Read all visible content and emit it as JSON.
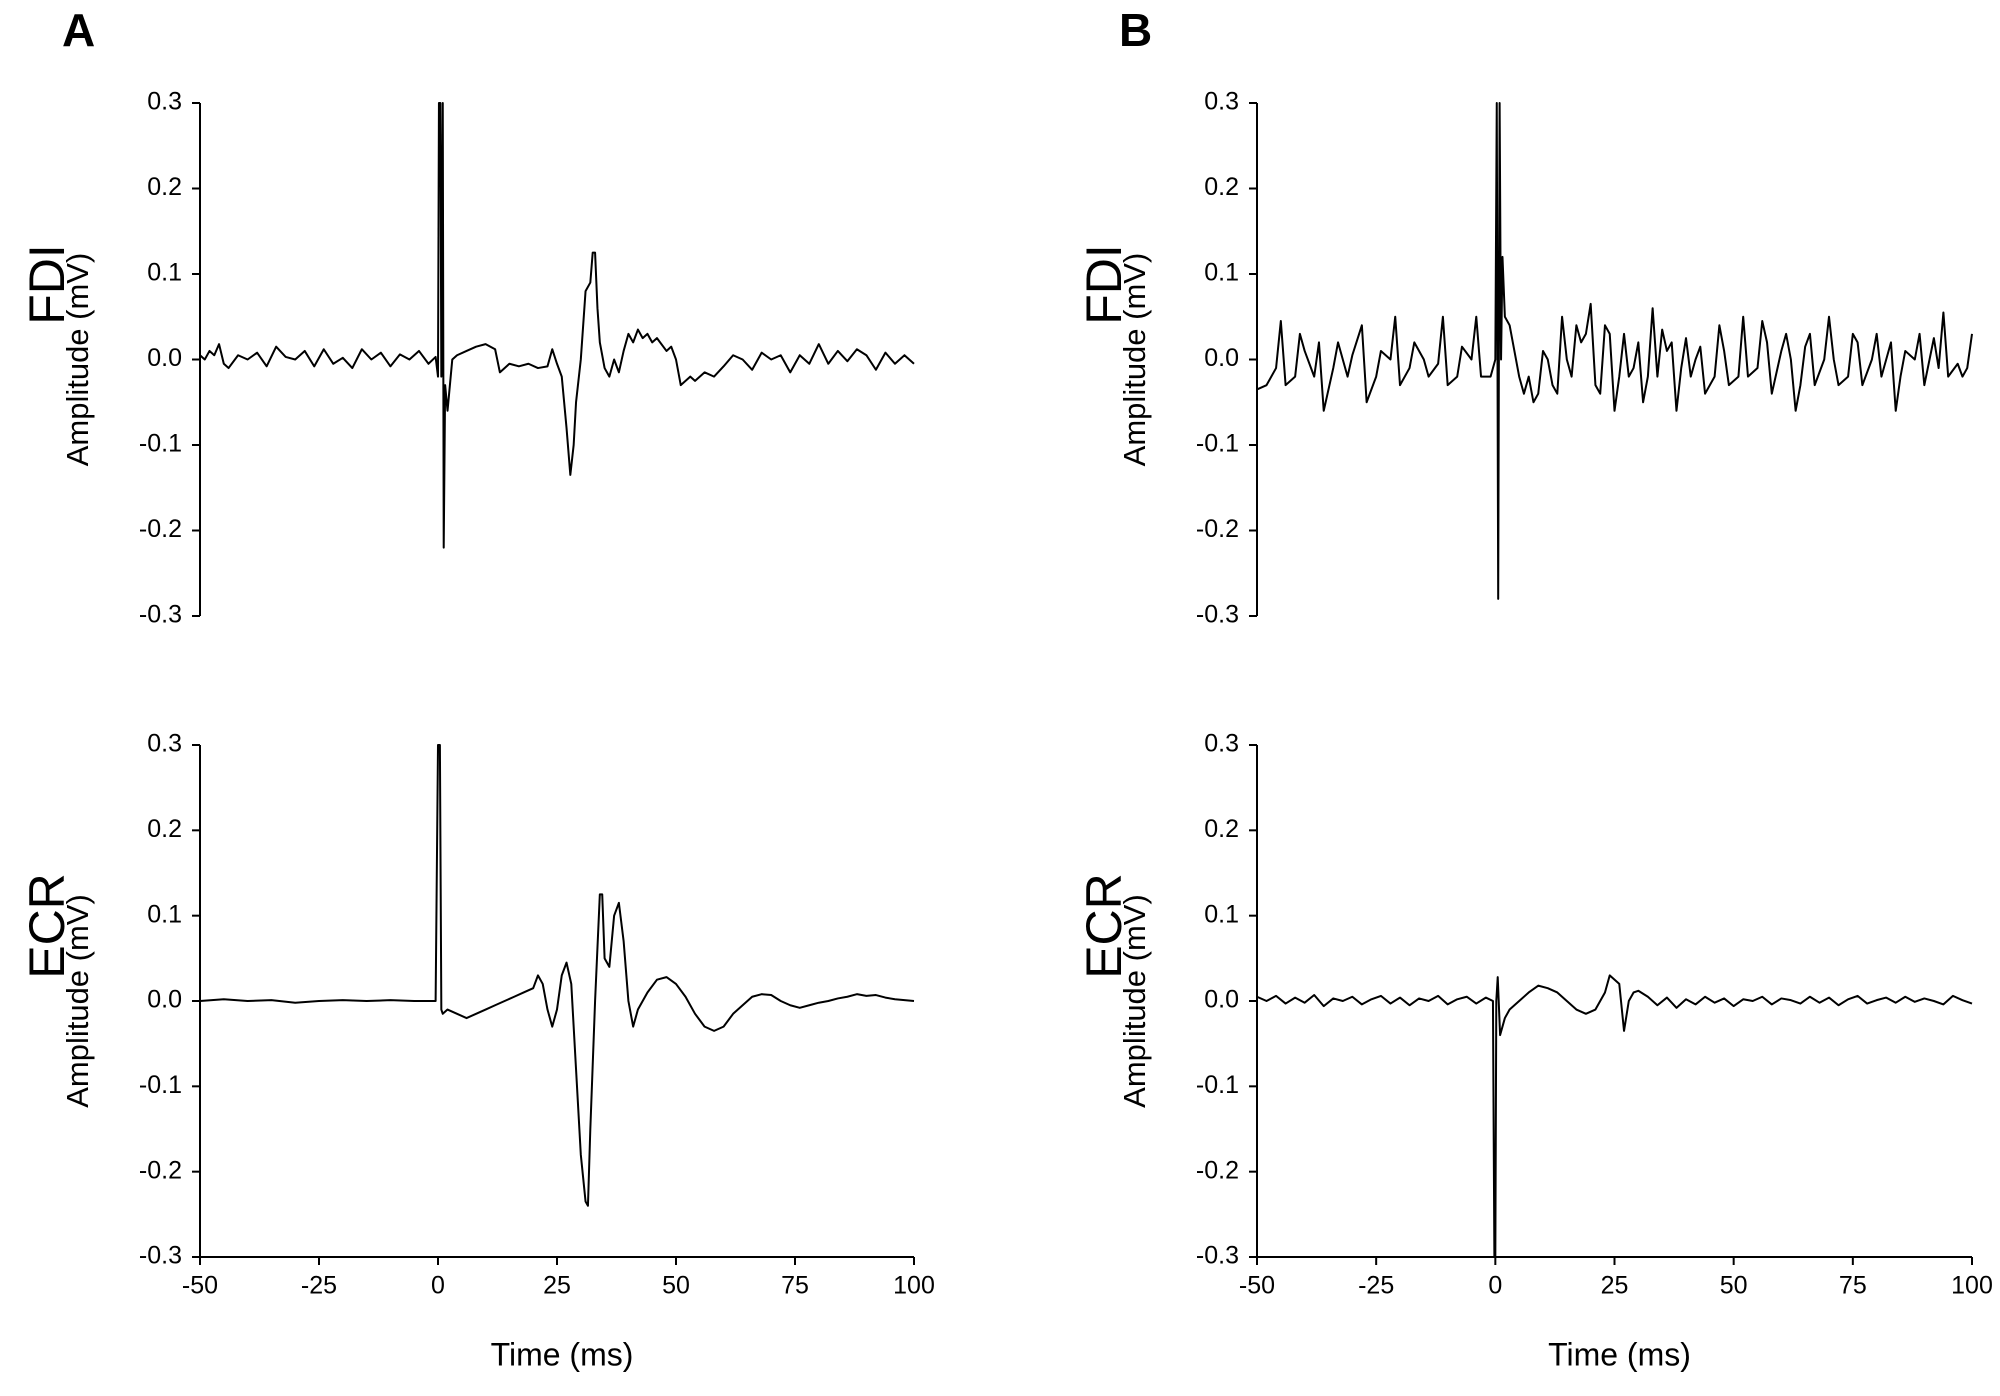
{
  "chart_data": [
    {
      "type": "line",
      "panel": "A",
      "title": "FDI",
      "ylabel": "Amplitude (mV)",
      "xlim": [
        -50,
        100
      ],
      "ylim": [
        -0.3,
        0.3
      ],
      "yticks": [
        -0.3,
        -0.2,
        -0.1,
        {
          "value": 0,
          "label": "0.0"
        },
        0.1,
        0.2,
        0.3
      ],
      "series": [
        {
          "color": "#000000",
          "x": [
            -50,
            -49,
            -48,
            -47,
            -46,
            -45,
            -44,
            -42,
            -40,
            -38,
            -36,
            -34,
            -32,
            -30,
            -28,
            -26,
            -24,
            -22,
            -20,
            -18,
            -16,
            -14,
            -12,
            -10,
            -8,
            -6,
            -4,
            -2,
            -0.5,
            0,
            0.2,
            0.5,
            0.7,
            1.0,
            1.2,
            1.5,
            2,
            3,
            4,
            6,
            8,
            10,
            12,
            13,
            15,
            17,
            19,
            21,
            23,
            24,
            25,
            26,
            27,
            27.8,
            28.5,
            29,
            30,
            31,
            32,
            32.5,
            33,
            33.5,
            34,
            35,
            36,
            37,
            38,
            39,
            40,
            41,
            42,
            43,
            44,
            45,
            46,
            48,
            49,
            50,
            51,
            53,
            54,
            56,
            58,
            60,
            62,
            64,
            66,
            68,
            70,
            72,
            74,
            76,
            78,
            80,
            82,
            84,
            86,
            88,
            90,
            92,
            94,
            96,
            98,
            100
          ],
          "values": [
            0.005,
            0.0,
            0.01,
            0.005,
            0.018,
            -0.005,
            -0.01,
            0.005,
            0.0,
            0.008,
            -0.008,
            0.015,
            0.003,
            0.0,
            0.01,
            -0.008,
            0.012,
            -0.005,
            0.002,
            -0.01,
            0.012,
            0.0,
            0.008,
            -0.008,
            0.006,
            0.0,
            0.01,
            -0.005,
            0.003,
            -0.02,
            0.3,
            0.3,
            -0.02,
            0.3,
            -0.22,
            -0.03,
            -0.06,
            0.0,
            0.005,
            0.01,
            0.015,
            0.018,
            0.012,
            -0.015,
            -0.005,
            -0.008,
            -0.005,
            -0.01,
            -0.008,
            0.012,
            -0.005,
            -0.02,
            -0.08,
            -0.135,
            -0.1,
            -0.05,
            0.0,
            0.08,
            0.09,
            0.125,
            0.125,
            0.06,
            0.02,
            -0.01,
            -0.02,
            0.0,
            -0.015,
            0.01,
            0.03,
            0.02,
            0.035,
            0.025,
            0.03,
            0.02,
            0.025,
            0.01,
            0.015,
            0.0,
            -0.03,
            -0.02,
            -0.025,
            -0.015,
            -0.02,
            -0.008,
            0.005,
            0.0,
            -0.012,
            0.008,
            0.0,
            0.005,
            -0.015,
            0.005,
            -0.005,
            0.018,
            -0.005,
            0.01,
            -0.002,
            0.012,
            0.005,
            -0.012,
            0.008,
            -0.005,
            0.005,
            -0.005
          ]
        }
      ]
    },
    {
      "type": "line",
      "panel": "B",
      "title": "FDI",
      "ylabel": "Amplitude (mV)",
      "xlim": [
        -50,
        100
      ],
      "ylim": [
        -0.3,
        0.3
      ],
      "yticks": [
        -0.3,
        -0.2,
        -0.1,
        {
          "value": 0,
          "label": "0.0"
        },
        0.1,
        0.2,
        0.3
      ],
      "series": [
        {
          "color": "#000000",
          "x": [
            -50,
            -48,
            -46,
            -45,
            -44,
            -42,
            -41,
            -40,
            -38,
            -37,
            -36,
            -34,
            -33,
            -31,
            -30,
            -28,
            -27,
            -25,
            -24,
            -22,
            -21,
            -20,
            -18,
            -17,
            -15,
            -14,
            -12,
            -11,
            -10,
            -8,
            -7,
            -5,
            -4,
            -3,
            -1,
            0,
            0.3,
            0.6,
            0.9,
            1.2,
            1.5,
            2,
            3,
            4,
            5,
            6,
            7,
            8,
            9,
            10,
            11,
            12,
            13,
            14,
            15,
            16,
            17,
            18,
            19,
            20,
            21,
            22,
            23,
            24,
            25,
            26,
            27,
            28,
            29,
            30,
            31,
            32,
            33,
            34,
            35,
            36,
            37,
            38,
            39,
            40,
            41,
            42,
            43,
            44,
            46,
            47,
            48,
            49,
            51,
            52,
            53,
            55,
            56,
            57,
            58,
            60,
            61,
            62,
            63,
            64,
            65,
            66,
            67,
            69,
            70,
            71,
            72,
            74,
            75,
            76,
            77,
            79,
            80,
            81,
            83,
            84,
            85,
            86,
            88,
            89,
            90,
            92,
            93,
            94,
            95,
            97,
            98,
            99,
            100
          ],
          "values": [
            -0.035,
            -0.03,
            -0.01,
            0.045,
            -0.03,
            -0.02,
            0.03,
            0.01,
            -0.02,
            0.02,
            -0.06,
            -0.01,
            0.02,
            -0.02,
            0.005,
            0.04,
            -0.05,
            -0.02,
            0.01,
            0.0,
            0.05,
            -0.03,
            -0.01,
            0.02,
            0.0,
            -0.02,
            -0.005,
            0.05,
            -0.03,
            -0.02,
            0.015,
            0.0,
            0.05,
            -0.02,
            -0.02,
            0.0,
            0.3,
            -0.28,
            0.3,
            0.0,
            0.12,
            0.05,
            0.04,
            0.01,
            -0.02,
            -0.04,
            -0.02,
            -0.05,
            -0.04,
            0.01,
            0.0,
            -0.03,
            -0.04,
            0.05,
            0.0,
            -0.02,
            0.04,
            0.02,
            0.03,
            0.065,
            -0.03,
            -0.04,
            0.04,
            0.03,
            -0.06,
            -0.02,
            0.03,
            -0.02,
            -0.01,
            0.02,
            -0.05,
            -0.02,
            0.06,
            -0.02,
            0.035,
            0.01,
            0.02,
            -0.06,
            -0.01,
            0.025,
            -0.02,
            0.0,
            0.015,
            -0.04,
            -0.02,
            0.04,
            0.01,
            -0.03,
            -0.02,
            0.05,
            -0.02,
            -0.01,
            0.045,
            0.02,
            -0.04,
            0.01,
            0.03,
            0.0,
            -0.06,
            -0.03,
            0.015,
            0.03,
            -0.03,
            0.0,
            0.05,
            0.0,
            -0.03,
            -0.02,
            0.03,
            0.02,
            -0.03,
            0.0,
            0.03,
            -0.02,
            0.02,
            -0.06,
            -0.02,
            0.01,
            0.0,
            0.03,
            -0.03,
            0.025,
            -0.01,
            0.055,
            -0.02,
            -0.005,
            -0.02,
            -0.01,
            0.03
          ]
        }
      ]
    },
    {
      "type": "line",
      "title": "ECR",
      "ylabel": "Amplitude (mV)",
      "xlabel": "Time (ms)",
      "xlim": [
        -50,
        100
      ],
      "ylim": [
        -0.3,
        0.3
      ],
      "xticks": [
        -50,
        -25,
        0,
        25,
        50,
        75,
        100
      ],
      "yticks": [
        -0.3,
        -0.2,
        -0.1,
        {
          "value": 0,
          "label": "0.0"
        },
        0.1,
        0.2,
        0.3
      ],
      "series": [
        {
          "color": "#000000",
          "x": [
            -50,
            -45,
            -40,
            -35,
            -30,
            -25,
            -20,
            -15,
            -10,
            -5,
            -0.5,
            0,
            0.4,
            0.7,
            1,
            2,
            4,
            6,
            8,
            10,
            12,
            14,
            16,
            18,
            20,
            21,
            22,
            23,
            24,
            25,
            26,
            27,
            28,
            29,
            30,
            31,
            31.5,
            32,
            33,
            34,
            34.5,
            35,
            36,
            37,
            38,
            39,
            40,
            41,
            42,
            44,
            46,
            48,
            50,
            52,
            54,
            56,
            58,
            60,
            62,
            64,
            66,
            68,
            70,
            72,
            74,
            76,
            78,
            80,
            82,
            84,
            86,
            88,
            90,
            92,
            94,
            96,
            98,
            100
          ],
          "values": [
            0.0,
            0.002,
            0.0,
            0.001,
            -0.002,
            0.0,
            0.001,
            0.0,
            0.001,
            0.0,
            0.0,
            0.3,
            0.3,
            -0.01,
            -0.015,
            -0.01,
            -0.015,
            -0.02,
            -0.015,
            -0.01,
            -0.005,
            0.0,
            0.005,
            0.01,
            0.015,
            0.03,
            0.02,
            -0.01,
            -0.03,
            -0.01,
            0.03,
            0.045,
            0.02,
            -0.08,
            -0.18,
            -0.235,
            -0.24,
            -0.15,
            0.0,
            0.125,
            0.125,
            0.05,
            0.04,
            0.1,
            0.115,
            0.07,
            0.0,
            -0.03,
            -0.01,
            0.01,
            0.025,
            0.028,
            0.02,
            0.005,
            -0.015,
            -0.03,
            -0.035,
            -0.03,
            -0.015,
            -0.005,
            0.005,
            0.008,
            0.007,
            0.0,
            -0.005,
            -0.008,
            -0.005,
            -0.002,
            0.0,
            0.003,
            0.005,
            0.008,
            0.006,
            0.007,
            0.004,
            0.002,
            0.001,
            0.0
          ]
        }
      ]
    },
    {
      "type": "line",
      "title": "ECR",
      "ylabel": "Amplitude (mV)",
      "xlabel": "Time (ms)",
      "xlim": [
        -50,
        100
      ],
      "ylim": [
        -0.3,
        0.3
      ],
      "xticks": [
        -50,
        -25,
        0,
        25,
        50,
        75,
        100
      ],
      "yticks": [
        -0.3,
        -0.2,
        -0.1,
        {
          "value": 0,
          "label": "0.0"
        },
        0.1,
        0.2,
        0.3
      ],
      "series": [
        {
          "color": "#000000",
          "x": [
            -50,
            -48,
            -46,
            -44,
            -42,
            -40,
            -38,
            -36,
            -34,
            -32,
            -30,
            -28,
            -26,
            -24,
            -22,
            -20,
            -18,
            -16,
            -14,
            -12,
            -10,
            -8,
            -6,
            -4,
            -2,
            -0.5,
            -0.2,
            0,
            0.2,
            0.5,
            1,
            2,
            3,
            5,
            7,
            9,
            11,
            13,
            15,
            17,
            19,
            21,
            23,
            24,
            25,
            26,
            27,
            28,
            29,
            30,
            32,
            34,
            36,
            38,
            40,
            42,
            44,
            46,
            48,
            50,
            52,
            54,
            56,
            58,
            60,
            62,
            64,
            66,
            68,
            70,
            72,
            74,
            76,
            78,
            80,
            82,
            84,
            86,
            88,
            90,
            92,
            94,
            96,
            98,
            100
          ],
          "values": [
            0.005,
            0.0,
            0.006,
            -0.003,
            0.004,
            -0.002,
            0.007,
            -0.006,
            0.003,
            0.0,
            0.005,
            -0.004,
            0.002,
            0.006,
            -0.003,
            0.004,
            -0.005,
            0.003,
            0.0,
            0.006,
            -0.004,
            0.002,
            0.005,
            -0.003,
            0.004,
            0.0,
            -0.3,
            -0.3,
            0.0,
            0.028,
            -0.04,
            -0.02,
            -0.01,
            0.0,
            0.01,
            0.018,
            0.015,
            0.01,
            0.0,
            -0.01,
            -0.015,
            -0.01,
            0.01,
            0.03,
            0.025,
            0.02,
            -0.035,
            0.0,
            0.01,
            0.012,
            0.005,
            -0.005,
            0.004,
            -0.008,
            0.002,
            -0.004,
            0.005,
            -0.002,
            0.003,
            -0.006,
            0.002,
            0.0,
            0.005,
            -0.004,
            0.003,
            0.001,
            -0.003,
            0.005,
            -0.002,
            0.004,
            -0.005,
            0.002,
            0.006,
            -0.003,
            0.001,
            0.004,
            -0.002,
            0.005,
            -0.001,
            0.003,
            0.0,
            -0.004,
            0.006,
            0.001,
            -0.003
          ]
        }
      ]
    }
  ]
}
